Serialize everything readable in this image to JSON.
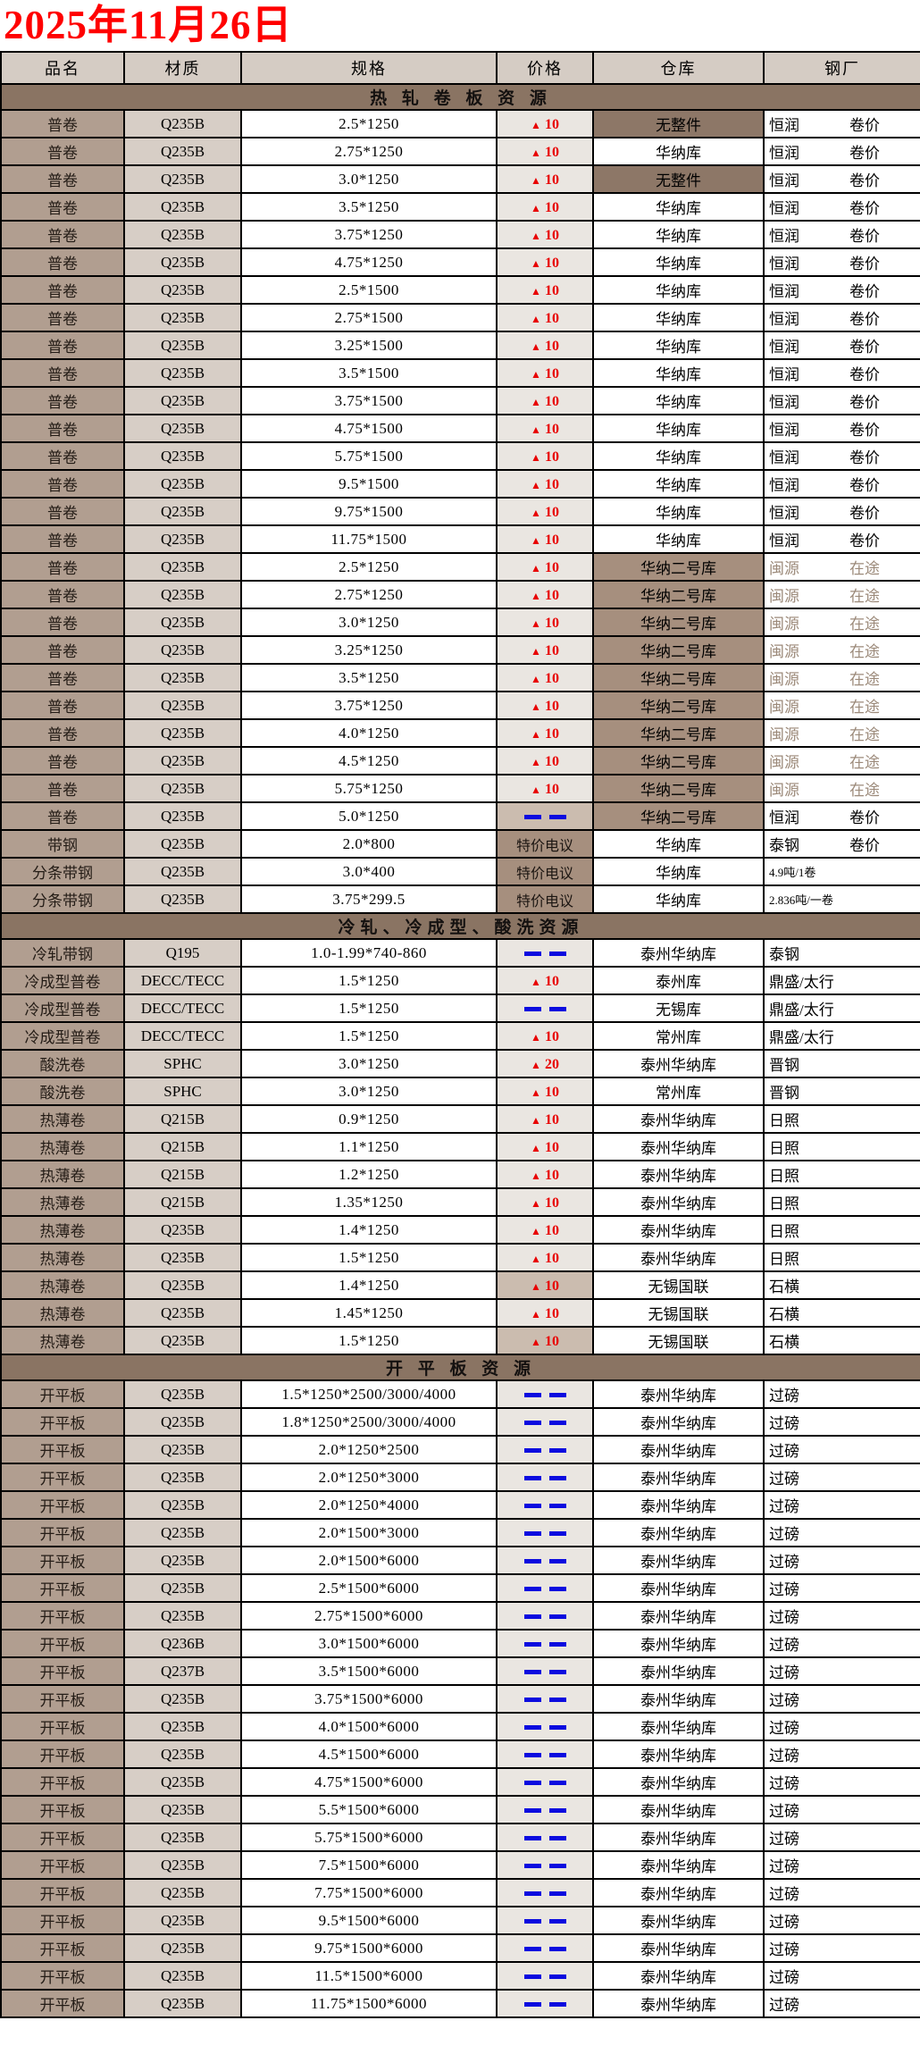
{
  "title": "2025年11月26日",
  "columns": [
    "品名",
    "材质",
    "规格",
    "价格",
    "仓库",
    "钢厂"
  ],
  "colors": {
    "title_red": "#ff0000",
    "price_up_red": "#e80000",
    "price_dash_blue": "#0b0bdf",
    "section_band_brown": "#8a7463",
    "header_bg": "#d5ccc4",
    "product_col_bg": "#b19e90",
    "grade_col_bg": "#d7cec6",
    "price_col_bg": "#eae6e1",
    "price_col_dark_bg": "#cbbcaf",
    "warehouse_dark_brown": "#8d7767",
    "warehouse_mid_brown": "#a68f7e",
    "muted_text": "#9c8a7a"
  },
  "sections": [
    {
      "header": "热 轧 卷 板 资 源",
      "rows": [
        {
          "p": "普卷",
          "g": "Q235B",
          "s": "2.5*1250",
          "pr": "▲ 10",
          "ps": "up",
          "pd": false,
          "w": "无整件",
          "ws": "dark",
          "m": "恒润",
          "m2": "卷价",
          "ms": ""
        },
        {
          "p": "普卷",
          "g": "Q235B",
          "s": "2.75*1250",
          "pr": "▲ 10",
          "ps": "up",
          "pd": false,
          "w": "华纳库",
          "ws": "",
          "m": "恒润",
          "m2": "卷价",
          "ms": ""
        },
        {
          "p": "普卷",
          "g": "Q235B",
          "s": "3.0*1250",
          "pr": "▲ 10",
          "ps": "up",
          "pd": false,
          "w": "无整件",
          "ws": "dark",
          "m": "恒润",
          "m2": "卷价",
          "ms": ""
        },
        {
          "p": "普卷",
          "g": "Q235B",
          "s": "3.5*1250",
          "pr": "▲ 10",
          "ps": "up",
          "pd": false,
          "w": "华纳库",
          "ws": "",
          "m": "恒润",
          "m2": "卷价",
          "ms": ""
        },
        {
          "p": "普卷",
          "g": "Q235B",
          "s": "3.75*1250",
          "pr": "▲ 10",
          "ps": "up",
          "pd": false,
          "w": "华纳库",
          "ws": "",
          "m": "恒润",
          "m2": "卷价",
          "ms": ""
        },
        {
          "p": "普卷",
          "g": "Q235B",
          "s": "4.75*1250",
          "pr": "▲ 10",
          "ps": "up",
          "pd": false,
          "w": "华纳库",
          "ws": "",
          "m": "恒润",
          "m2": "卷价",
          "ms": ""
        },
        {
          "p": "普卷",
          "g": "Q235B",
          "s": "2.5*1500",
          "pr": "▲ 10",
          "ps": "up",
          "pd": false,
          "w": "华纳库",
          "ws": "",
          "m": "恒润",
          "m2": "卷价",
          "ms": ""
        },
        {
          "p": "普卷",
          "g": "Q235B",
          "s": "2.75*1500",
          "pr": "▲ 10",
          "ps": "up",
          "pd": false,
          "w": "华纳库",
          "ws": "",
          "m": "恒润",
          "m2": "卷价",
          "ms": ""
        },
        {
          "p": "普卷",
          "g": "Q235B",
          "s": "3.25*1500",
          "pr": "▲ 10",
          "ps": "up",
          "pd": false,
          "w": "华纳库",
          "ws": "",
          "m": "恒润",
          "m2": "卷价",
          "ms": ""
        },
        {
          "p": "普卷",
          "g": "Q235B",
          "s": "3.5*1500",
          "pr": "▲ 10",
          "ps": "up",
          "pd": false,
          "w": "华纳库",
          "ws": "",
          "m": "恒润",
          "m2": "卷价",
          "ms": ""
        },
        {
          "p": "普卷",
          "g": "Q235B",
          "s": "3.75*1500",
          "pr": "▲ 10",
          "ps": "up",
          "pd": false,
          "w": "华纳库",
          "ws": "",
          "m": "恒润",
          "m2": "卷价",
          "ms": ""
        },
        {
          "p": "普卷",
          "g": "Q235B",
          "s": "4.75*1500",
          "pr": "▲ 10",
          "ps": "up",
          "pd": false,
          "w": "华纳库",
          "ws": "",
          "m": "恒润",
          "m2": "卷价",
          "ms": ""
        },
        {
          "p": "普卷",
          "g": "Q235B",
          "s": "5.75*1500",
          "pr": "▲ 10",
          "ps": "up",
          "pd": false,
          "w": "华纳库",
          "ws": "",
          "m": "恒润",
          "m2": "卷价",
          "ms": ""
        },
        {
          "p": "普卷",
          "g": "Q235B",
          "s": "9.5*1500",
          "pr": "▲ 10",
          "ps": "up",
          "pd": false,
          "w": "华纳库",
          "ws": "",
          "m": "恒润",
          "m2": "卷价",
          "ms": ""
        },
        {
          "p": "普卷",
          "g": "Q235B",
          "s": "9.75*1500",
          "pr": "▲ 10",
          "ps": "up",
          "pd": false,
          "w": "华纳库",
          "ws": "",
          "m": "恒润",
          "m2": "卷价",
          "ms": ""
        },
        {
          "p": "普卷",
          "g": "Q235B",
          "s": "11.75*1500",
          "pr": "▲ 10",
          "ps": "up",
          "pd": false,
          "w": "华纳库",
          "ws": "",
          "m": "恒润",
          "m2": "卷价",
          "ms": ""
        },
        {
          "p": "普卷",
          "g": "Q235B",
          "s": "2.5*1250",
          "pr": "▲ 10",
          "ps": "up",
          "pd": false,
          "w": "华纳二号库",
          "ws": "mid",
          "m": "闽源",
          "m2": "在途",
          "ms": "muted"
        },
        {
          "p": "普卷",
          "g": "Q235B",
          "s": "2.75*1250",
          "pr": "▲ 10",
          "ps": "up",
          "pd": false,
          "w": "华纳二号库",
          "ws": "mid",
          "m": "闽源",
          "m2": "在途",
          "ms": "muted"
        },
        {
          "p": "普卷",
          "g": "Q235B",
          "s": "3.0*1250",
          "pr": "▲ 10",
          "ps": "up",
          "pd": false,
          "w": "华纳二号库",
          "ws": "mid",
          "m": "闽源",
          "m2": "在途",
          "ms": "muted"
        },
        {
          "p": "普卷",
          "g": "Q235B",
          "s": "3.25*1250",
          "pr": "▲ 10",
          "ps": "up",
          "pd": false,
          "w": "华纳二号库",
          "ws": "mid",
          "m": "闽源",
          "m2": "在途",
          "ms": "muted"
        },
        {
          "p": "普卷",
          "g": "Q235B",
          "s": "3.5*1250",
          "pr": "▲ 10",
          "ps": "up",
          "pd": false,
          "w": "华纳二号库",
          "ws": "mid",
          "m": "闽源",
          "m2": "在途",
          "ms": "muted"
        },
        {
          "p": "普卷",
          "g": "Q235B",
          "s": "3.75*1250",
          "pr": "▲ 10",
          "ps": "up",
          "pd": false,
          "w": "华纳二号库",
          "ws": "mid",
          "m": "闽源",
          "m2": "在途",
          "ms": "muted"
        },
        {
          "p": "普卷",
          "g": "Q235B",
          "s": "4.0*1250",
          "pr": "▲ 10",
          "ps": "up",
          "pd": false,
          "w": "华纳二号库",
          "ws": "mid",
          "m": "闽源",
          "m2": "在途",
          "ms": "muted"
        },
        {
          "p": "普卷",
          "g": "Q235B",
          "s": "4.5*1250",
          "pr": "▲ 10",
          "ps": "up",
          "pd": false,
          "w": "华纳二号库",
          "ws": "mid",
          "m": "闽源",
          "m2": "在途",
          "ms": "muted"
        },
        {
          "p": "普卷",
          "g": "Q235B",
          "s": "5.75*1250",
          "pr": "▲ 10",
          "ps": "up",
          "pd": false,
          "w": "华纳二号库",
          "ws": "mid",
          "m": "闽源",
          "m2": "在途",
          "ms": "muted"
        },
        {
          "p": "普卷",
          "g": "Q235B",
          "s": "5.0*1250",
          "pr": "——",
          "ps": "dash",
          "pd": true,
          "w": "华纳二号库",
          "ws": "mid",
          "m": "恒润",
          "m2": "卷价",
          "ms": ""
        },
        {
          "p": "带钢",
          "g": "Q235B",
          "s": "2.0*800",
          "pr": "特价电议",
          "ps": "tejia",
          "pd": false,
          "w": "华纳库",
          "ws": "",
          "m": "泰钢",
          "m2": "卷价",
          "ms": ""
        },
        {
          "p": "分条带钢",
          "g": "Q235B",
          "s": "3.0*400",
          "pr": "特价电议",
          "ps": "tejia",
          "pd": false,
          "w": "华纳库",
          "ws": "",
          "m": "4.9吨/1卷",
          "m2": "",
          "ms": "small"
        },
        {
          "p": "分条带钢",
          "g": "Q235B",
          "s": "3.75*299.5",
          "pr": "特价电议",
          "ps": "tejia",
          "pd": false,
          "w": "华纳库",
          "ws": "",
          "m": "2.836吨/一卷",
          "m2": "",
          "ms": "small"
        }
      ]
    },
    {
      "header": "冷轧、冷成型、酸洗资源",
      "rows": [
        {
          "p": "冷轧带钢",
          "g": "Q195",
          "s": "1.0-1.99*740-860",
          "pr": "——",
          "ps": "dash",
          "pd": false,
          "w": "泰州华纳库",
          "ws": "",
          "m": "泰钢",
          "m2": "",
          "ms": ""
        },
        {
          "p": "冷成型普卷",
          "g": "DECC/TECC",
          "s": "1.5*1250",
          "pr": "▲ 10",
          "ps": "up",
          "pd": false,
          "w": "泰州库",
          "ws": "",
          "m": "鼎盛/太行",
          "m2": "",
          "ms": ""
        },
        {
          "p": "冷成型普卷",
          "g": "DECC/TECC",
          "s": "1.5*1250",
          "pr": "——",
          "ps": "dash",
          "pd": false,
          "w": "无锡库",
          "ws": "",
          "m": "鼎盛/太行",
          "m2": "",
          "ms": ""
        },
        {
          "p": "冷成型普卷",
          "g": "DECC/TECC",
          "s": "1.5*1250",
          "pr": "▲ 10",
          "ps": "up",
          "pd": false,
          "w": "常州库",
          "ws": "",
          "m": "鼎盛/太行",
          "m2": "",
          "ms": ""
        },
        {
          "p": "酸洗卷",
          "g": "SPHC",
          "s": "3.0*1250",
          "pr": "▲ 20",
          "ps": "up",
          "pd": false,
          "w": "泰州华纳库",
          "ws": "",
          "m": "晋钢",
          "m2": "",
          "ms": ""
        },
        {
          "p": "酸洗卷",
          "g": "SPHC",
          "s": "3.0*1250",
          "pr": "▲ 10",
          "ps": "up",
          "pd": false,
          "w": "常州库",
          "ws": "",
          "m": "晋钢",
          "m2": "",
          "ms": ""
        },
        {
          "p": "热薄卷",
          "g": "Q215B",
          "s": "0.9*1250",
          "pr": "▲ 10",
          "ps": "up",
          "pd": false,
          "w": "泰州华纳库",
          "ws": "",
          "m": "日照",
          "m2": "",
          "ms": ""
        },
        {
          "p": "热薄卷",
          "g": "Q215B",
          "s": "1.1*1250",
          "pr": "▲ 10",
          "ps": "up",
          "pd": false,
          "w": "泰州华纳库",
          "ws": "",
          "m": "日照",
          "m2": "",
          "ms": ""
        },
        {
          "p": "热薄卷",
          "g": "Q215B",
          "s": "1.2*1250",
          "pr": "▲ 10",
          "ps": "up",
          "pd": false,
          "w": "泰州华纳库",
          "ws": "",
          "m": "日照",
          "m2": "",
          "ms": ""
        },
        {
          "p": "热薄卷",
          "g": "Q215B",
          "s": "1.35*1250",
          "pr": "▲ 10",
          "ps": "up",
          "pd": false,
          "w": "泰州华纳库",
          "ws": "",
          "m": "日照",
          "m2": "",
          "ms": ""
        },
        {
          "p": "热薄卷",
          "g": "Q235B",
          "s": "1.4*1250",
          "pr": "▲ 10",
          "ps": "up",
          "pd": false,
          "w": "泰州华纳库",
          "ws": "",
          "m": "日照",
          "m2": "",
          "ms": ""
        },
        {
          "p": "热薄卷",
          "g": "Q235B",
          "s": "1.5*1250",
          "pr": "▲ 10",
          "ps": "up",
          "pd": false,
          "w": "泰州华纳库",
          "ws": "",
          "m": "日照",
          "m2": "",
          "ms": ""
        },
        {
          "p": "热薄卷",
          "g": "Q235B",
          "s": "1.4*1250",
          "pr": "▲ 10",
          "ps": "up",
          "pd": true,
          "w": "无锡国联",
          "ws": "",
          "m": "石横",
          "m2": "",
          "ms": ""
        },
        {
          "p": "热薄卷",
          "g": "Q235B",
          "s": "1.45*1250",
          "pr": "▲ 10",
          "ps": "up",
          "pd": false,
          "w": "无锡国联",
          "ws": "",
          "m": "石横",
          "m2": "",
          "ms": ""
        },
        {
          "p": "热薄卷",
          "g": "Q235B",
          "s": "1.5*1250",
          "pr": "▲ 10",
          "ps": "up",
          "pd": true,
          "w": "无锡国联",
          "ws": "",
          "m": "石横",
          "m2": "",
          "ms": ""
        }
      ]
    },
    {
      "header": "开 平 板 资 源",
      "rows": [
        {
          "p": "开平板",
          "g": "Q235B",
          "s": "1.5*1250*2500/3000/4000",
          "pr": "——",
          "ps": "dash",
          "pd": false,
          "w": "泰州华纳库",
          "ws": "",
          "m": "过磅",
          "m2": "",
          "ms": ""
        },
        {
          "p": "开平板",
          "g": "Q235B",
          "s": "1.8*1250*2500/3000/4000",
          "pr": "——",
          "ps": "dash",
          "pd": false,
          "w": "泰州华纳库",
          "ws": "",
          "m": "过磅",
          "m2": "",
          "ms": ""
        },
        {
          "p": "开平板",
          "g": "Q235B",
          "s": "2.0*1250*2500",
          "pr": "——",
          "ps": "dash",
          "pd": false,
          "w": "泰州华纳库",
          "ws": "",
          "m": "过磅",
          "m2": "",
          "ms": ""
        },
        {
          "p": "开平板",
          "g": "Q235B",
          "s": "2.0*1250*3000",
          "pr": "——",
          "ps": "dash",
          "pd": false,
          "w": "泰州华纳库",
          "ws": "",
          "m": "过磅",
          "m2": "",
          "ms": ""
        },
        {
          "p": "开平板",
          "g": "Q235B",
          "s": "2.0*1250*4000",
          "pr": "——",
          "ps": "dash",
          "pd": false,
          "w": "泰州华纳库",
          "ws": "",
          "m": "过磅",
          "m2": "",
          "ms": ""
        },
        {
          "p": "开平板",
          "g": "Q235B",
          "s": "2.0*1500*3000",
          "pr": "——",
          "ps": "dash",
          "pd": false,
          "w": "泰州华纳库",
          "ws": "",
          "m": "过磅",
          "m2": "",
          "ms": ""
        },
        {
          "p": "开平板",
          "g": "Q235B",
          "s": "2.0*1500*6000",
          "pr": "——",
          "ps": "dash",
          "pd": false,
          "w": "泰州华纳库",
          "ws": "",
          "m": "过磅",
          "m2": "",
          "ms": ""
        },
        {
          "p": "开平板",
          "g": "Q235B",
          "s": "2.5*1500*6000",
          "pr": "——",
          "ps": "dash",
          "pd": false,
          "w": "泰州华纳库",
          "ws": "",
          "m": "过磅",
          "m2": "",
          "ms": ""
        },
        {
          "p": "开平板",
          "g": "Q235B",
          "s": "2.75*1500*6000",
          "pr": "——",
          "ps": "dash",
          "pd": false,
          "w": "泰州华纳库",
          "ws": "",
          "m": "过磅",
          "m2": "",
          "ms": ""
        },
        {
          "p": "开平板",
          "g": "Q236B",
          "s": "3.0*1500*6000",
          "pr": "——",
          "ps": "dash",
          "pd": false,
          "w": "泰州华纳库",
          "ws": "",
          "m": "过磅",
          "m2": "",
          "ms": ""
        },
        {
          "p": "开平板",
          "g": "Q237B",
          "s": "3.5*1500*6000",
          "pr": "——",
          "ps": "dash",
          "pd": false,
          "w": "泰州华纳库",
          "ws": "",
          "m": "过磅",
          "m2": "",
          "ms": ""
        },
        {
          "p": "开平板",
          "g": "Q235B",
          "s": "3.75*1500*6000",
          "pr": "——",
          "ps": "dash",
          "pd": false,
          "w": "泰州华纳库",
          "ws": "",
          "m": "过磅",
          "m2": "",
          "ms": ""
        },
        {
          "p": "开平板",
          "g": "Q235B",
          "s": "4.0*1500*6000",
          "pr": "——",
          "ps": "dash",
          "pd": false,
          "w": "泰州华纳库",
          "ws": "",
          "m": "过磅",
          "m2": "",
          "ms": ""
        },
        {
          "p": "开平板",
          "g": "Q235B",
          "s": "4.5*1500*6000",
          "pr": "——",
          "ps": "dash",
          "pd": false,
          "w": "泰州华纳库",
          "ws": "",
          "m": "过磅",
          "m2": "",
          "ms": ""
        },
        {
          "p": "开平板",
          "g": "Q235B",
          "s": "4.75*1500*6000",
          "pr": "——",
          "ps": "dash",
          "pd": false,
          "w": "泰州华纳库",
          "ws": "",
          "m": "过磅",
          "m2": "",
          "ms": ""
        },
        {
          "p": "开平板",
          "g": "Q235B",
          "s": "5.5*1500*6000",
          "pr": "——",
          "ps": "dash",
          "pd": false,
          "w": "泰州华纳库",
          "ws": "",
          "m": "过磅",
          "m2": "",
          "ms": ""
        },
        {
          "p": "开平板",
          "g": "Q235B",
          "s": "5.75*1500*6000",
          "pr": "——",
          "ps": "dash",
          "pd": false,
          "w": "泰州华纳库",
          "ws": "",
          "m": "过磅",
          "m2": "",
          "ms": ""
        },
        {
          "p": "开平板",
          "g": "Q235B",
          "s": "7.5*1500*6000",
          "pr": "——",
          "ps": "dash",
          "pd": false,
          "w": "泰州华纳库",
          "ws": "",
          "m": "过磅",
          "m2": "",
          "ms": ""
        },
        {
          "p": "开平板",
          "g": "Q235B",
          "s": "7.75*1500*6000",
          "pr": "——",
          "ps": "dash",
          "pd": false,
          "w": "泰州华纳库",
          "ws": "",
          "m": "过磅",
          "m2": "",
          "ms": ""
        },
        {
          "p": "开平板",
          "g": "Q235B",
          "s": "9.5*1500*6000",
          "pr": "——",
          "ps": "dash",
          "pd": false,
          "w": "泰州华纳库",
          "ws": "",
          "m": "过磅",
          "m2": "",
          "ms": ""
        },
        {
          "p": "开平板",
          "g": "Q235B",
          "s": "9.75*1500*6000",
          "pr": "——",
          "ps": "dash",
          "pd": false,
          "w": "泰州华纳库",
          "ws": "",
          "m": "过磅",
          "m2": "",
          "ms": ""
        },
        {
          "p": "开平板",
          "g": "Q235B",
          "s": "11.5*1500*6000",
          "pr": "——",
          "ps": "dash",
          "pd": false,
          "w": "泰州华纳库",
          "ws": "",
          "m": "过磅",
          "m2": "",
          "ms": ""
        },
        {
          "p": "开平板",
          "g": "Q235B",
          "s": "11.75*1500*6000",
          "pr": "——",
          "ps": "dash",
          "pd": false,
          "w": "泰州华纳库",
          "ws": "",
          "m": "过磅",
          "m2": "",
          "ms": ""
        }
      ]
    }
  ]
}
